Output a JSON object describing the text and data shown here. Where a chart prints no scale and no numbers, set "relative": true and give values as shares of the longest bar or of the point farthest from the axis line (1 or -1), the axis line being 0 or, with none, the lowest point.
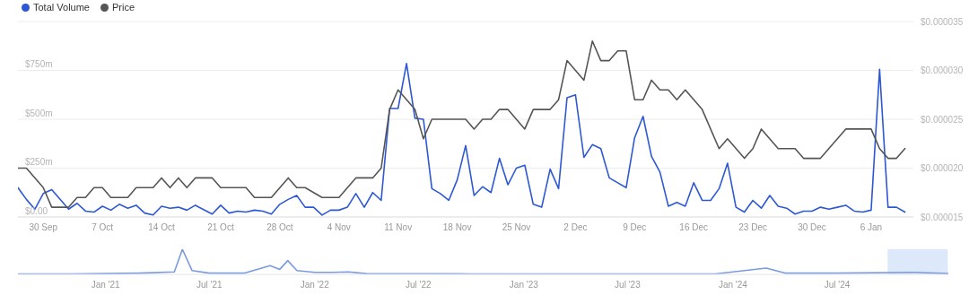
{
  "chart_data": [
    {
      "type": "line",
      "legend": "top left",
      "grid": "y",
      "xlim": [
        "2024-09-27",
        "2025-01-11"
      ],
      "xticks": [
        {
          "value": "2024-09-30",
          "label": "30 Sep"
        },
        {
          "value": "2024-10-07",
          "label": "7 Oct"
        },
        {
          "value": "2024-10-14",
          "label": "14 Oct"
        },
        {
          "value": "2024-10-21",
          "label": "21 Oct"
        },
        {
          "value": "2024-10-28",
          "label": "28 Oct"
        },
        {
          "value": "2024-11-04",
          "label": "4 Nov"
        },
        {
          "value": "2024-11-11",
          "label": "11 Nov"
        },
        {
          "value": "2024-11-18",
          "label": "18 Nov"
        },
        {
          "value": "2024-11-25",
          "label": "25 Nov"
        },
        {
          "value": "2024-12-02",
          "label": "2 Dec"
        },
        {
          "value": "2024-12-09",
          "label": "9 Dec"
        },
        {
          "value": "2024-12-16",
          "label": "16 Dec"
        },
        {
          "value": "2024-12-23",
          "label": "23 Dec"
        },
        {
          "value": "2024-12-30",
          "label": "30 Dec"
        },
        {
          "value": "2025-01-06",
          "label": "6 Jan"
        }
      ],
      "ylim": [
        0,
        1000
      ],
      "yticks": [
        {
          "value": 0,
          "label": "$0.00"
        },
        {
          "value": 250,
          "label": "$250m"
        },
        {
          "value": 500,
          "label": "$500m"
        },
        {
          "value": 750,
          "label": "$750m"
        },
        {
          "value": 1000,
          "label": null
        }
      ],
      "y2lim": [
        1.5e-05,
        3.5e-05
      ],
      "y2ticks": [
        {
          "value": 1.5e-05,
          "label": "$0.000015"
        },
        {
          "value": 2e-05,
          "label": "$0.000020"
        },
        {
          "value": 2.5e-05,
          "label": "$0.000025"
        },
        {
          "value": 3e-05,
          "label": "$0.000030"
        },
        {
          "value": 3.5e-05,
          "label": "$0.000035"
        }
      ],
      "series": [
        {
          "name": "Total Volume",
          "color": "#2d58d4",
          "x": [
            "2024-09-27",
            "2024-09-28",
            "2024-09-29",
            "2024-09-30",
            "2024-10-01",
            "2024-10-03",
            "2024-10-04",
            "2024-10-05",
            "2024-10-06",
            "2024-10-07",
            "2024-10-08",
            "2024-10-09",
            "2024-10-10",
            "2024-10-11",
            "2024-10-12",
            "2024-10-13",
            "2024-10-14",
            "2024-10-15",
            "2024-10-16",
            "2024-10-17",
            "2024-10-18",
            "2024-10-20",
            "2024-10-21",
            "2024-10-22",
            "2024-10-23",
            "2024-10-24",
            "2024-10-25",
            "2024-10-26",
            "2024-10-27",
            "2024-10-28",
            "2024-10-29",
            "2024-10-30",
            "2024-10-31",
            "2024-11-01",
            "2024-11-02",
            "2024-11-03",
            "2024-11-04",
            "2024-11-05",
            "2024-11-06",
            "2024-11-07",
            "2024-11-08",
            "2024-11-09",
            "2024-11-10",
            "2024-11-11",
            "2024-11-12",
            "2024-11-13",
            "2024-11-14",
            "2024-11-15",
            "2024-11-16",
            "2024-11-17",
            "2024-11-18",
            "2024-11-19",
            "2024-11-20",
            "2024-11-21",
            "2024-11-22",
            "2024-11-23",
            "2024-11-24",
            "2024-11-25",
            "2024-11-26",
            "2024-11-27",
            "2024-11-28",
            "2024-11-29",
            "2024-11-30",
            "2024-12-01",
            "2024-12-02",
            "2024-12-03",
            "2024-12-04",
            "2024-12-05",
            "2024-12-06",
            "2024-12-07",
            "2024-12-08",
            "2024-12-09",
            "2024-12-10",
            "2024-12-11",
            "2024-12-12",
            "2024-12-13",
            "2024-12-14",
            "2024-12-15",
            "2024-12-16",
            "2024-12-17",
            "2024-12-18",
            "2024-12-19",
            "2024-12-20",
            "2024-12-21",
            "2024-12-22",
            "2024-12-23",
            "2024-12-24",
            "2024-12-25",
            "2024-12-26",
            "2024-12-27",
            "2024-12-28",
            "2024-12-29",
            "2024-12-30",
            "2024-12-31",
            "2025-01-01",
            "2025-01-02",
            "2025-01-03",
            "2025-01-04",
            "2025-01-05",
            "2025-01-06",
            "2025-01-07",
            "2025-01-08",
            "2025-01-09",
            "2025-01-10"
          ],
          "values": [
            150,
            90,
            40,
            120,
            140,
            40,
            70,
            30,
            25,
            55,
            35,
            65,
            45,
            60,
            20,
            10,
            55,
            45,
            50,
            35,
            60,
            15,
            60,
            20,
            30,
            25,
            35,
            30,
            15,
            65,
            90,
            110,
            50,
            50,
            10,
            35,
            35,
            50,
            120,
            50,
            125,
            85,
            555,
            555,
            785,
            505,
            500,
            145,
            120,
            85,
            190,
            365,
            110,
            155,
            125,
            300,
            165,
            250,
            265,
            65,
            50,
            245,
            145,
            610,
            625,
            305,
            370,
            350,
            200,
            175,
            150,
            405,
            515,
            310,
            230,
            55,
            75,
            55,
            175,
            85,
            85,
            145,
            275,
            50,
            25,
            85,
            45,
            110,
            55,
            45,
            15,
            30,
            30,
            50,
            40,
            50,
            60,
            30,
            25,
            35,
            755,
            50,
            50,
            25
          ]
        },
        {
          "name": "Price",
          "color": "#555555",
          "axis": "y2",
          "x": [
            "2024-09-27",
            "2024-09-28",
            "2024-09-30",
            "2024-10-01",
            "2024-10-03",
            "2024-10-04",
            "2024-10-05",
            "2024-10-06",
            "2024-10-07",
            "2024-10-08",
            "2024-10-10",
            "2024-10-11",
            "2024-10-13",
            "2024-10-14",
            "2024-10-15",
            "2024-10-16",
            "2024-10-17",
            "2024-10-18",
            "2024-10-20",
            "2024-10-21",
            "2024-10-24",
            "2024-10-25",
            "2024-10-27",
            "2024-10-29",
            "2024-10-30",
            "2024-10-31",
            "2024-11-02",
            "2024-11-04",
            "2024-11-06",
            "2024-11-08",
            "2024-11-09",
            "2024-11-10",
            "2024-11-11",
            "2024-11-13",
            "2024-11-14",
            "2024-11-15",
            "2024-11-19",
            "2024-11-20",
            "2024-11-21",
            "2024-11-22",
            "2024-11-23",
            "2024-11-24",
            "2024-11-26",
            "2024-11-27",
            "2024-11-29",
            "2024-11-30",
            "2024-12-01",
            "2024-12-03",
            "2024-12-04",
            "2024-12-05",
            "2024-12-06",
            "2024-12-07",
            "2024-12-08",
            "2024-12-09",
            "2024-12-10",
            "2024-12-11",
            "2024-12-12",
            "2024-12-13",
            "2024-12-14",
            "2024-12-15",
            "2024-12-17",
            "2024-12-19",
            "2024-12-20",
            "2024-12-22",
            "2024-12-23",
            "2024-12-24",
            "2024-12-26",
            "2024-12-28",
            "2024-12-29",
            "2024-12-31",
            "2025-01-03",
            "2025-01-06",
            "2025-01-07",
            "2025-01-08",
            "2025-01-09",
            "2025-01-10"
          ],
          "values": [
            2e-05,
            2e-05,
            1.8e-05,
            1.6e-05,
            1.6e-05,
            1.7e-05,
            1.7e-05,
            1.8e-05,
            1.8e-05,
            1.7e-05,
            1.7e-05,
            1.8e-05,
            1.8e-05,
            1.9e-05,
            1.8e-05,
            1.9e-05,
            1.8e-05,
            1.9e-05,
            1.9e-05,
            1.8e-05,
            1.8e-05,
            1.7e-05,
            1.7e-05,
            1.9e-05,
            1.8e-05,
            1.8e-05,
            1.7e-05,
            1.7e-05,
            1.9e-05,
            1.9e-05,
            2e-05,
            2.6e-05,
            2.8e-05,
            2.6e-05,
            2.3e-05,
            2.5e-05,
            2.5e-05,
            2.4e-05,
            2.5e-05,
            2.5e-05,
            2.6e-05,
            2.6e-05,
            2.4e-05,
            2.6e-05,
            2.6e-05,
            2.7e-05,
            3.1e-05,
            2.9e-05,
            3.3e-05,
            3.1e-05,
            3.1e-05,
            3.2e-05,
            3.2e-05,
            2.7e-05,
            2.7e-05,
            2.9e-05,
            2.8e-05,
            2.8e-05,
            2.7e-05,
            2.8e-05,
            2.6e-05,
            2.2e-05,
            2.3e-05,
            2.1e-05,
            2.2e-05,
            2.4e-05,
            2.2e-05,
            2.2e-05,
            2.1e-05,
            2.1e-05,
            2.4e-05,
            2.4e-05,
            2.2e-05,
            2.1e-05,
            2.1e-05,
            2.2e-05
          ]
        }
      ]
    },
    {
      "type": "line",
      "relative": true,
      "tick_labels": "x",
      "xlim": [
        "2020-08-01",
        "2025-01-11"
      ],
      "xticks": [
        {
          "value": "2021-01-01",
          "label": "Jan '21"
        },
        {
          "value": "2021-07-01",
          "label": "Jul '21"
        },
        {
          "value": "2022-01-01",
          "label": "Jan '22"
        },
        {
          "value": "2022-07-01",
          "label": "Jul '22"
        },
        {
          "value": "2023-01-01",
          "label": "Jan '23"
        },
        {
          "value": "2023-07-01",
          "label": "Jul '23"
        },
        {
          "value": "2024-01-01",
          "label": "Jan '24"
        },
        {
          "value": "2024-07-01",
          "label": "Jul '24"
        }
      ],
      "bands": [
        {
          "axis": "x",
          "from": "2024-09-27",
          "to": "2025-01-10",
          "color": "#dde8fb"
        }
      ],
      "series": [
        {
          "color": "#7b9be0",
          "x": [
            "2020-08-01",
            "2020-11-01",
            "2021-01-01",
            "2021-03-01",
            "2021-05-01",
            "2021-05-15",
            "2021-06-01",
            "2021-07-01",
            "2021-09-01",
            "2021-10-15",
            "2021-11-01",
            "2021-11-15",
            "2021-12-01",
            "2022-01-01",
            "2022-02-01",
            "2022-03-01",
            "2022-04-01",
            "2022-10-01",
            "2023-06-01",
            "2023-12-01",
            "2024-02-28",
            "2024-04-01",
            "2024-07-01",
            "2024-11-15",
            "2025-01-10"
          ],
          "values": [
            0.02,
            0.02,
            0.03,
            0.05,
            0.1,
            1,
            0.15,
            0.05,
            0.05,
            0.35,
            0.2,
            0.55,
            0.15,
            0.08,
            0.08,
            0.1,
            0.03,
            0.02,
            0.02,
            0.02,
            0.25,
            0.05,
            0.05,
            0.08,
            0.03
          ]
        }
      ]
    }
  ]
}
